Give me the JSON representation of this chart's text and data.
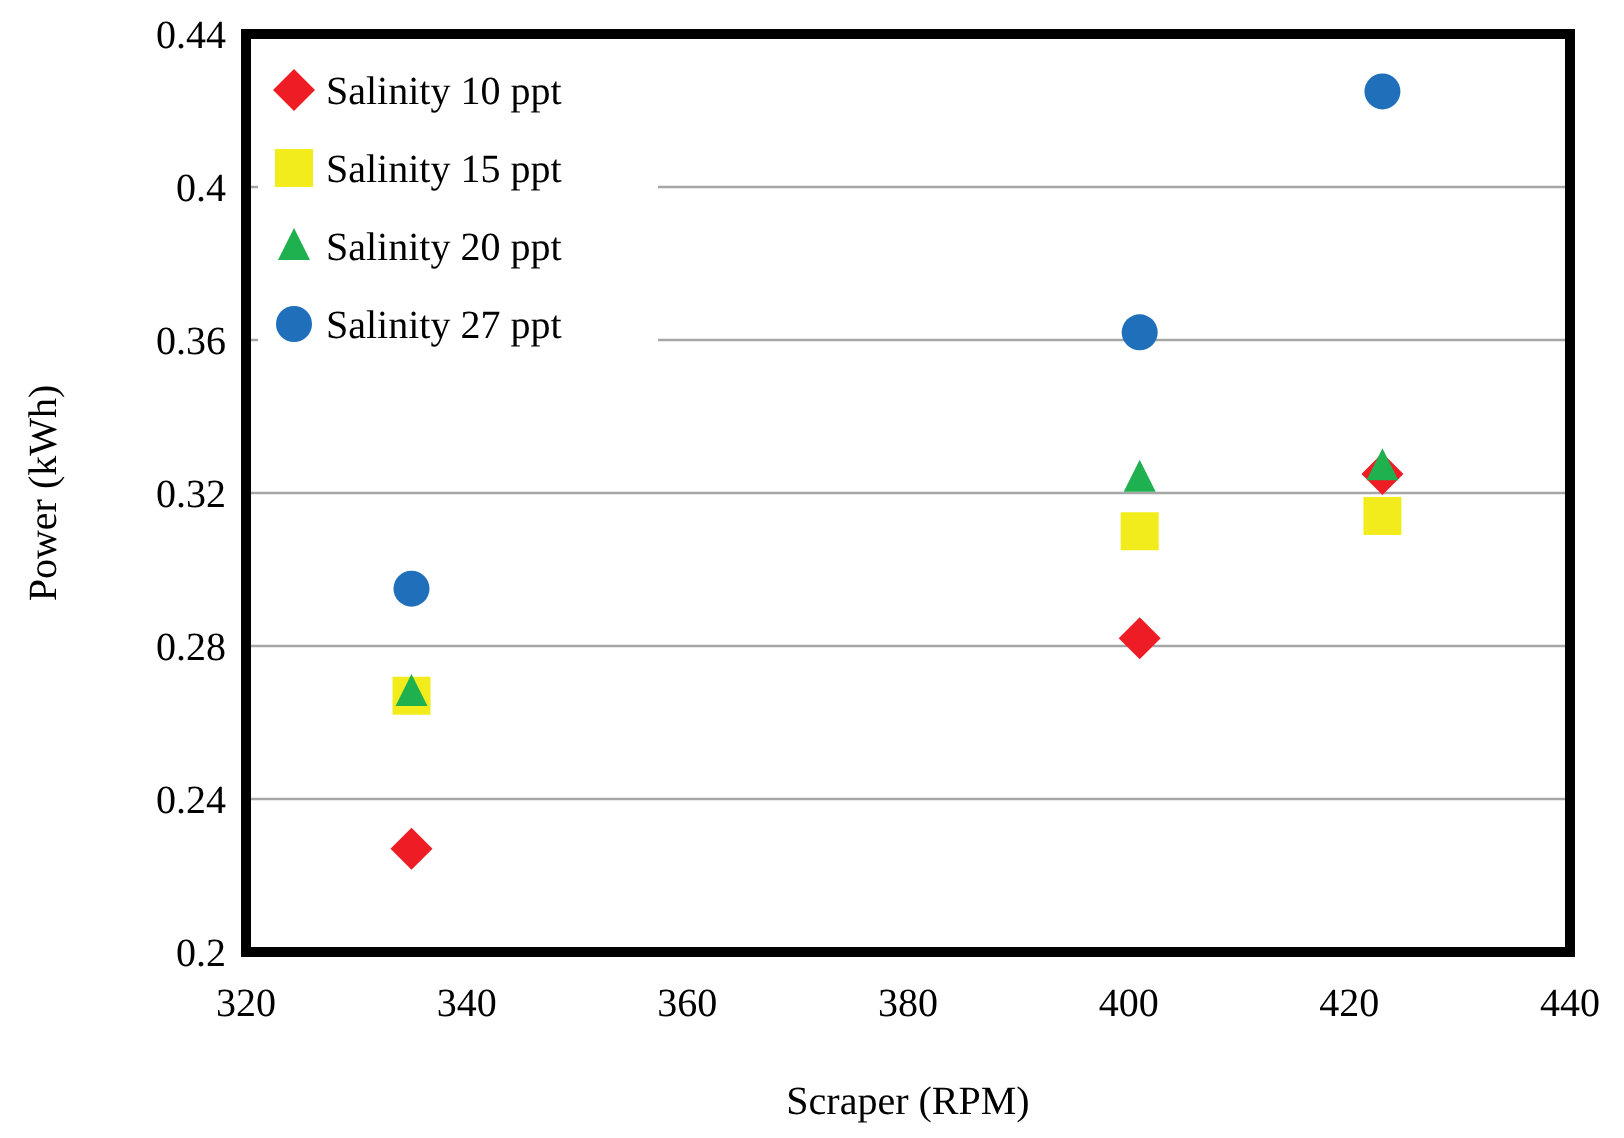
{
  "chart_data": {
    "type": "scatter",
    "xlabel": "Scraper (RPM)",
    "ylabel": "Power (kWh)",
    "xlim": [
      320,
      440
    ],
    "xticks": [
      320,
      340,
      360,
      380,
      400,
      420,
      440
    ],
    "ylim": [
      0.2,
      0.44
    ],
    "yticks": [
      0.2,
      0.24,
      0.28,
      0.32,
      0.36,
      0.4,
      0.44
    ],
    "grid": "y",
    "legend": "top left",
    "x": [
      335,
      401,
      423
    ],
    "series": [
      {
        "name": "Salinity 10 ppt",
        "color": "#ee1c25",
        "marker": "diamond",
        "values": [
          0.227,
          0.282,
          0.325
        ]
      },
      {
        "name": "Salinity 15 ppt",
        "color": "#f2ec1c",
        "marker": "square",
        "values": [
          0.267,
          0.31,
          0.314
        ]
      },
      {
        "name": "Salinity 20 ppt",
        "color": "#1fb050",
        "marker": "triangle",
        "values": [
          0.268,
          0.324,
          0.327
        ]
      },
      {
        "name": "Salinity 27 ppt",
        "color": "#1f6fba",
        "marker": "circle",
        "values": [
          0.295,
          0.362,
          0.425
        ]
      }
    ]
  }
}
